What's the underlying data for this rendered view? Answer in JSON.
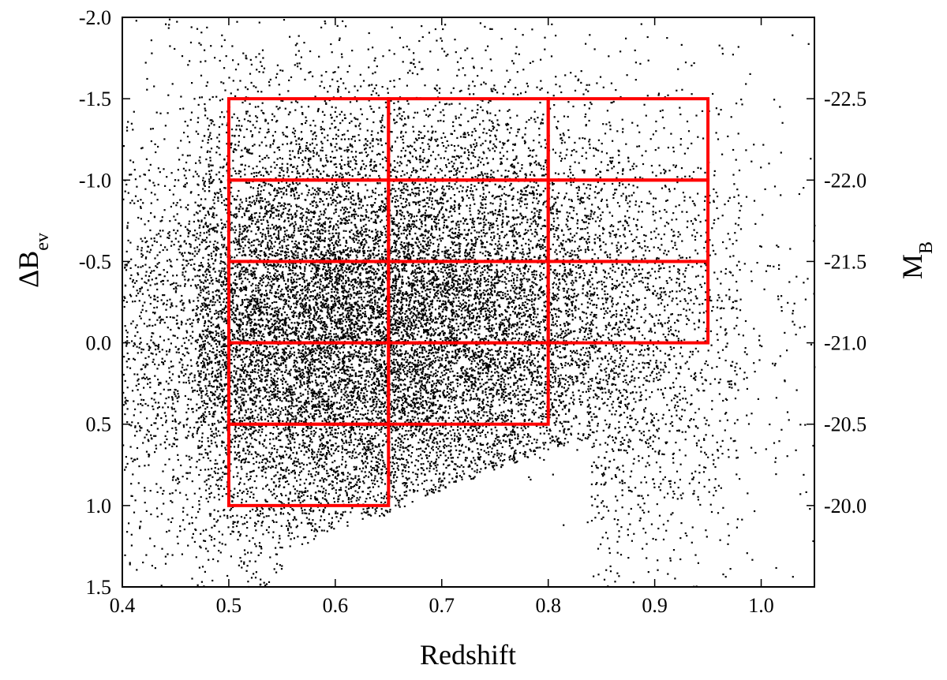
{
  "chart_data": {
    "type": "scatter",
    "xlabel": "Redshift",
    "ylabel_left": {
      "main": "ΔB",
      "sub": "ev"
    },
    "ylabel_right": {
      "main": "M",
      "sub": "B"
    },
    "xlim": [
      0.4,
      1.05
    ],
    "ylim_left": [
      1.5,
      -2.0
    ],
    "ylim_right": [
      -19.5,
      -23.0
    ],
    "x_ticks": [
      "0.4",
      "0.5",
      "0.6",
      "0.7",
      "0.8",
      "0.9",
      "1.0"
    ],
    "x_tick_values": [
      0.4,
      0.5,
      0.6,
      0.7,
      0.8,
      0.9,
      1.0
    ],
    "y_left_ticks": [
      "-2.0",
      "-1.5",
      "-1.0",
      "-0.5",
      "0.0",
      "0.5",
      "1.0",
      "1.5"
    ],
    "y_left_tick_values": [
      -2.0,
      -1.5,
      -1.0,
      -0.5,
      0.0,
      0.5,
      1.0,
      1.5
    ],
    "y_right_ticks": [
      "-22.5",
      "-22.0",
      "-21.5",
      "-21.0",
      "-20.5",
      "-20.0"
    ],
    "y_right_tick_values": [
      -22.5,
      -22.0,
      -21.5,
      -21.0,
      -20.5,
      -20.0
    ],
    "grid": false,
    "series": [
      {
        "type": "scatter",
        "marker_color": "#000000",
        "point_count_approx": 30000,
        "distribution": {
          "x_range": [
            0.4,
            1.05
          ],
          "y_range": [
            -2.0,
            1.5
          ],
          "lower_envelope": [
            [
              0.55,
              1.3
            ],
            [
              0.6,
              1.15
            ],
            [
              0.65,
              1.05
            ],
            [
              0.7,
              0.9
            ],
            [
              0.75,
              0.78
            ],
            [
              0.8,
              0.65
            ],
            [
              0.84,
              0.58
            ]
          ],
          "densest_region": {
            "x": [
              0.5,
              0.8
            ],
            "y": [
              -0.8,
              0.9
            ]
          }
        }
      }
    ],
    "bins": [
      {
        "x": [
          0.5,
          0.65
        ],
        "y": [
          -1.5,
          -1.0
        ]
      },
      {
        "x": [
          0.65,
          0.8
        ],
        "y": [
          -1.5,
          -1.0
        ]
      },
      {
        "x": [
          0.8,
          0.95
        ],
        "y": [
          -1.5,
          -1.0
        ]
      },
      {
        "x": [
          0.5,
          0.65
        ],
        "y": [
          -1.0,
          -0.5
        ]
      },
      {
        "x": [
          0.65,
          0.8
        ],
        "y": [
          -1.0,
          -0.5
        ]
      },
      {
        "x": [
          0.8,
          0.95
        ],
        "y": [
          -1.0,
          -0.5
        ]
      },
      {
        "x": [
          0.5,
          0.65
        ],
        "y": [
          -0.5,
          0.0
        ]
      },
      {
        "x": [
          0.65,
          0.8
        ],
        "y": [
          -0.5,
          0.0
        ]
      },
      {
        "x": [
          0.8,
          0.95
        ],
        "y": [
          -0.5,
          0.0
        ]
      },
      {
        "x": [
          0.5,
          0.65
        ],
        "y": [
          0.0,
          0.5
        ]
      },
      {
        "x": [
          0.65,
          0.8
        ],
        "y": [
          0.0,
          0.5
        ]
      },
      {
        "x": [
          0.5,
          0.65
        ],
        "y": [
          0.5,
          1.0
        ]
      }
    ],
    "bin_color": "#ff0000"
  }
}
